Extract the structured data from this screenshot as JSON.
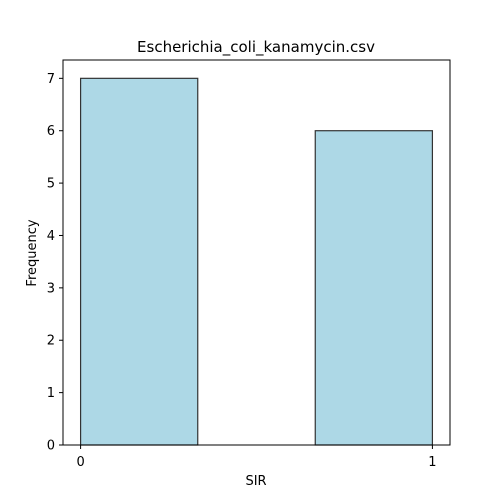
{
  "chart_data": {
    "type": "bar",
    "title": "Escherichia_coli_kanamycin.csv",
    "xlabel": "SIR",
    "ylabel": "Frequency",
    "bins": [
      {
        "start": 0.0,
        "end": 0.333,
        "value": 7
      },
      {
        "start": 0.333,
        "end": 0.667,
        "value": 0
      },
      {
        "start": 0.667,
        "end": 1.0,
        "value": 6
      }
    ],
    "x_ticks": [
      0,
      1
    ],
    "y_ticks": [
      0,
      1,
      2,
      3,
      4,
      5,
      6,
      7
    ],
    "xlim": [
      -0.05,
      1.05
    ],
    "ylim": [
      0,
      7.35
    ],
    "bar_color": "#add8e6",
    "bar_edge_color": "#333333",
    "grid": false
  }
}
